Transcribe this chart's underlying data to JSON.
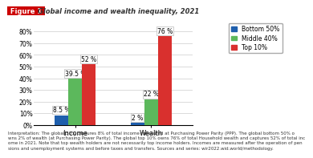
{
  "title": "Global income and wealth inequality, 2021",
  "title_prefix": "Figure 1",
  "categories": [
    "Income",
    "Wealth"
  ],
  "groups": [
    "Bottom 50%",
    "Middle 40%",
    "Top 10%"
  ],
  "values": {
    "Income": [
      8.5,
      39.5,
      52
    ],
    "Wealth": [
      2,
      22,
      76
    ]
  },
  "colors": [
    "#1f5fad",
    "#5cb85c",
    "#d9302e"
  ],
  "ylim": [
    0,
    88
  ],
  "yticks": [
    0,
    10,
    20,
    30,
    40,
    50,
    60,
    70,
    80
  ],
  "bar_width": 0.18,
  "annotation_fontsize": 5.5,
  "legend_fontsize": 5.5,
  "axis_fontsize": 6.0,
  "title_fontsize": 6.0,
  "footer_fontsize": 4.0,
  "footer_text": "Interpretation: The global 50% captures 8% of total income measured at Purchasing Power Parity (PPP). The global bottom 50% o\nwns 2% of wealth (at Purchasing Power Parity). The global top 10% owns 76% of total Household wealth and captures 52% of total inc\nome in 2021. Note that top wealth holders are not necessarily top income holders. Incomes are measured after the operation of pen\nsions and unemployment systems and before taxes and transfers. Sources and series: wir2022.wid.world/methodology.",
  "background_color": "#ffffff",
  "grid_color": "#cccccc",
  "title_color": "#333333",
  "prefix_color": "#cc0000",
  "prefix_bg": "#cc0000"
}
